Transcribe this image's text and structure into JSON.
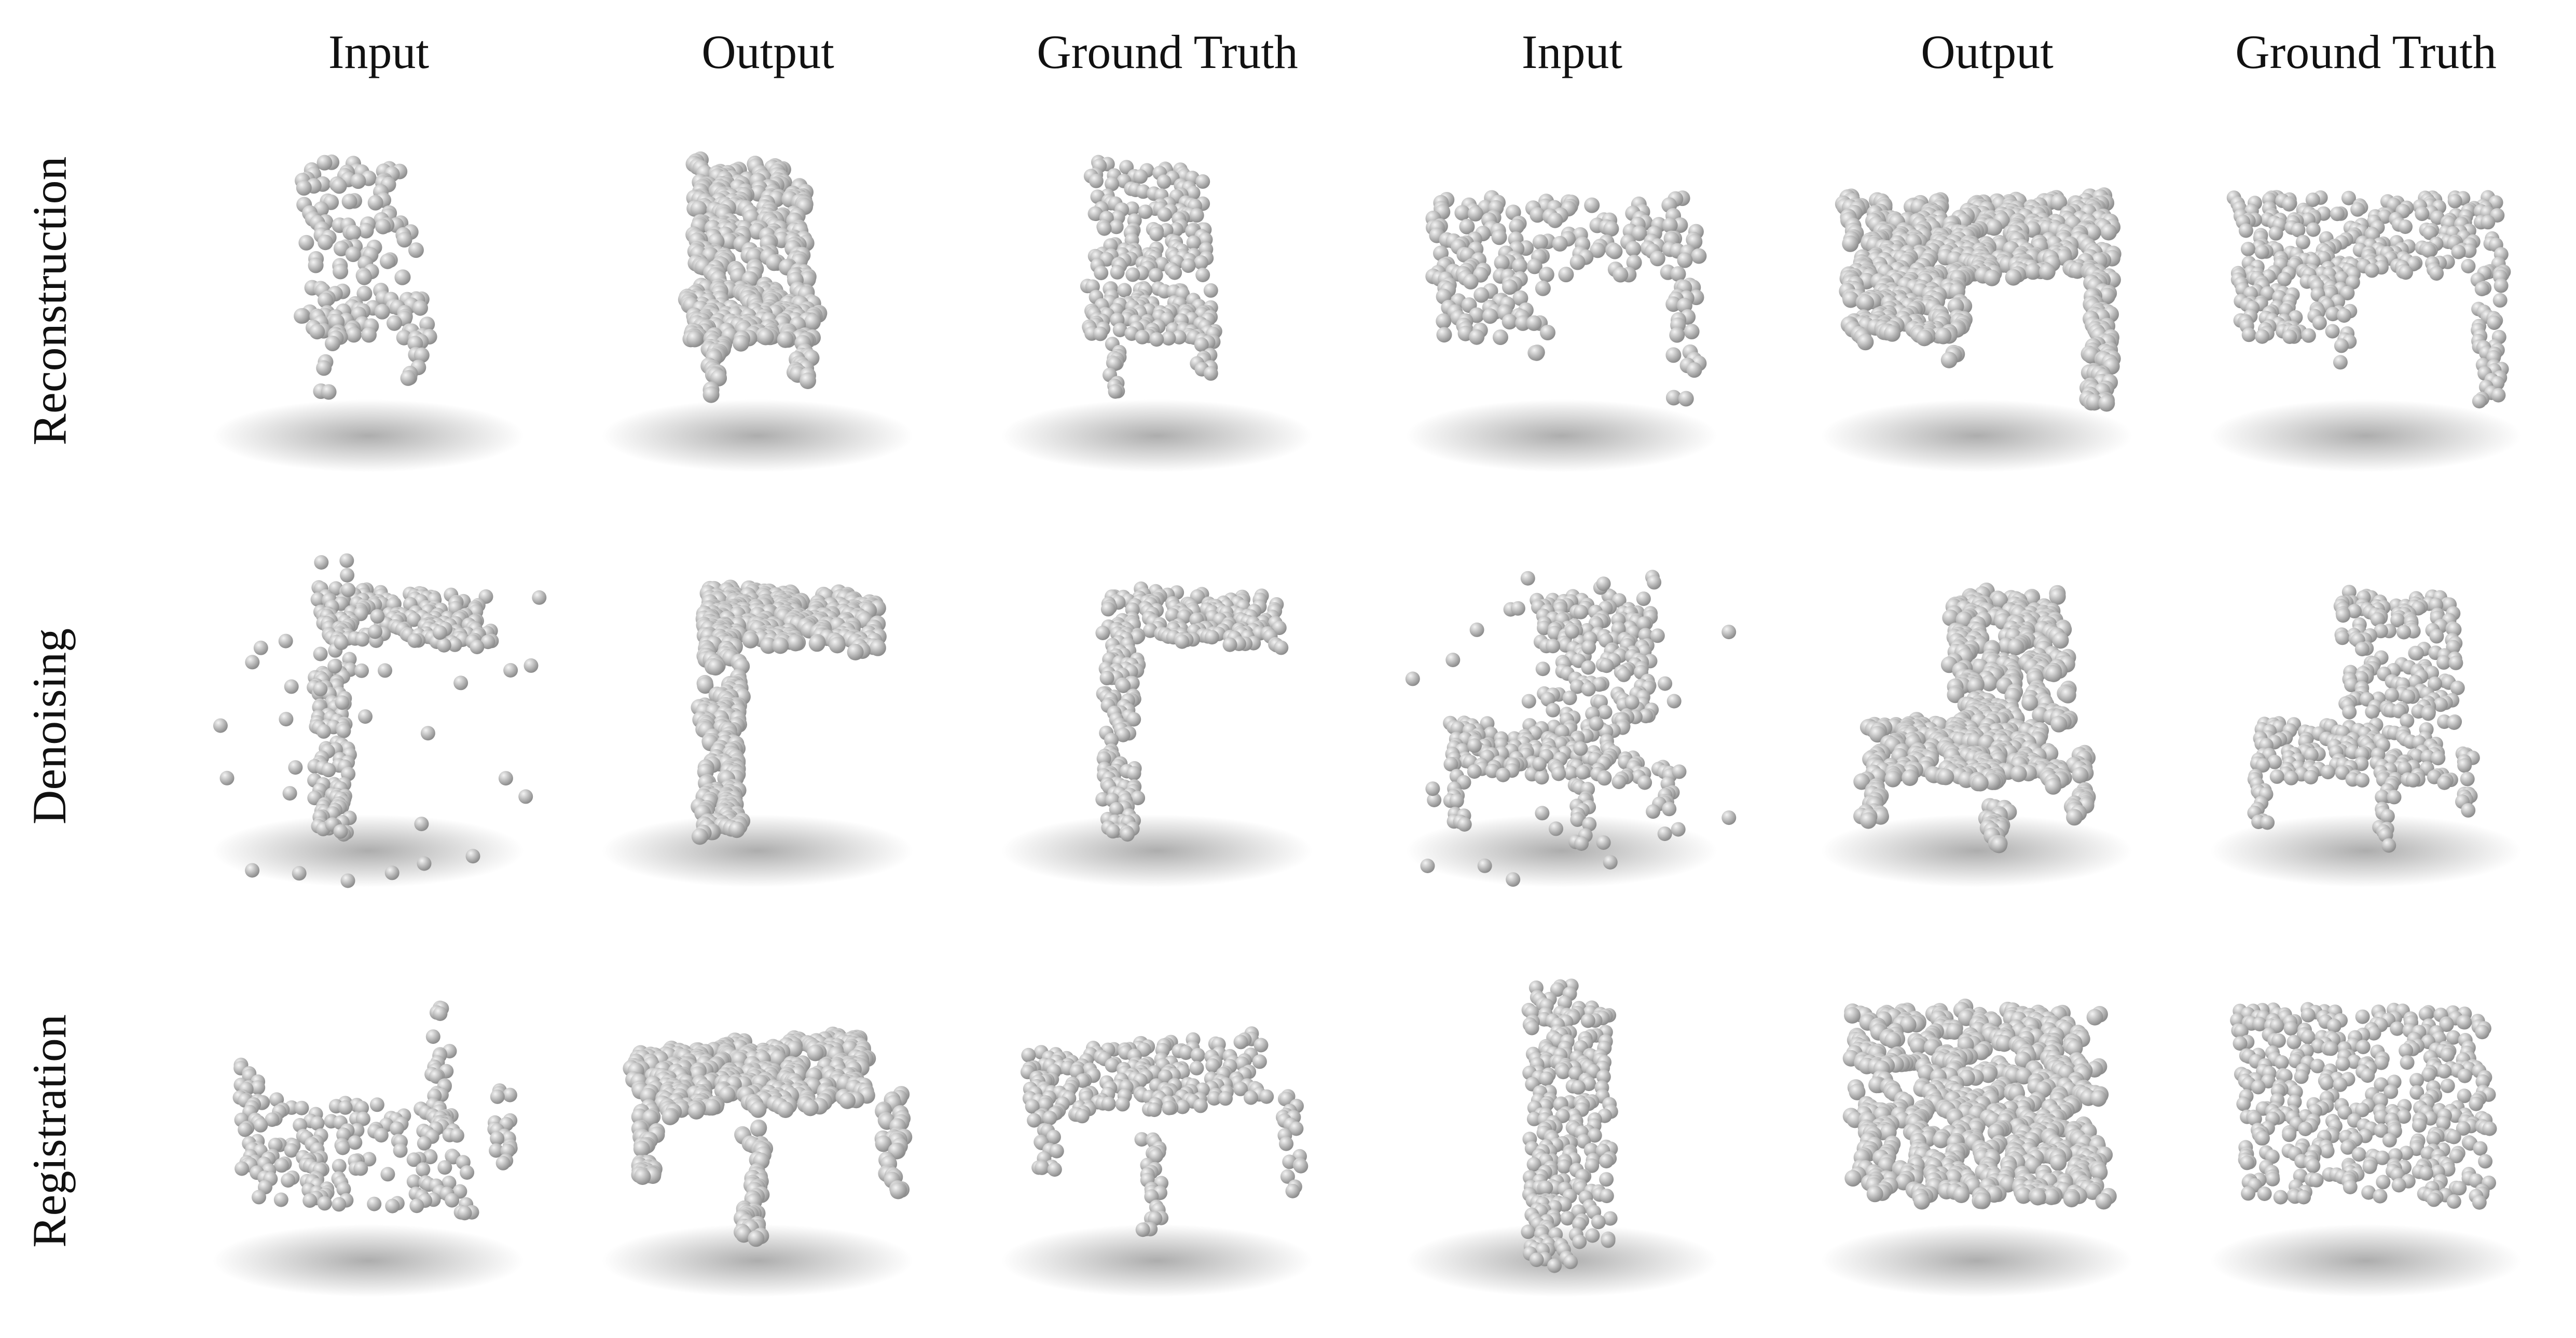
{
  "columns": [
    "Input",
    "Output",
    "Ground Truth",
    "Input",
    "Output",
    "Ground Truth"
  ],
  "rows": [
    "Reconstruction",
    "Denoising",
    "Registration"
  ],
  "cells": [
    [
      {
        "object": "chair",
        "variant": "partial"
      },
      {
        "object": "chair",
        "variant": "dense"
      },
      {
        "object": "chair",
        "variant": "truth"
      },
      {
        "object": "desk",
        "variant": "partial"
      },
      {
        "object": "desk",
        "variant": "dense"
      },
      {
        "object": "desk",
        "variant": "truth"
      }
    ],
    [
      {
        "object": "side-table",
        "variant": "noisy"
      },
      {
        "object": "side-table",
        "variant": "dense"
      },
      {
        "object": "side-table",
        "variant": "truth"
      },
      {
        "object": "chair-front",
        "variant": "noisy"
      },
      {
        "object": "chair-front",
        "variant": "dense"
      },
      {
        "object": "chair-front",
        "variant": "truth"
      }
    ],
    [
      {
        "object": "table-flipped",
        "variant": "truth"
      },
      {
        "object": "table",
        "variant": "dense"
      },
      {
        "object": "table",
        "variant": "truth"
      },
      {
        "object": "panel-edge",
        "variant": "truth"
      },
      {
        "object": "panel",
        "variant": "dense"
      },
      {
        "object": "panel",
        "variant": "truth"
      }
    ]
  ],
  "colors": {
    "point_light": "#f4f4f4",
    "point_dark": "#8c8c8c",
    "shadow": "#6a6a6a",
    "background": "#ffffff"
  }
}
